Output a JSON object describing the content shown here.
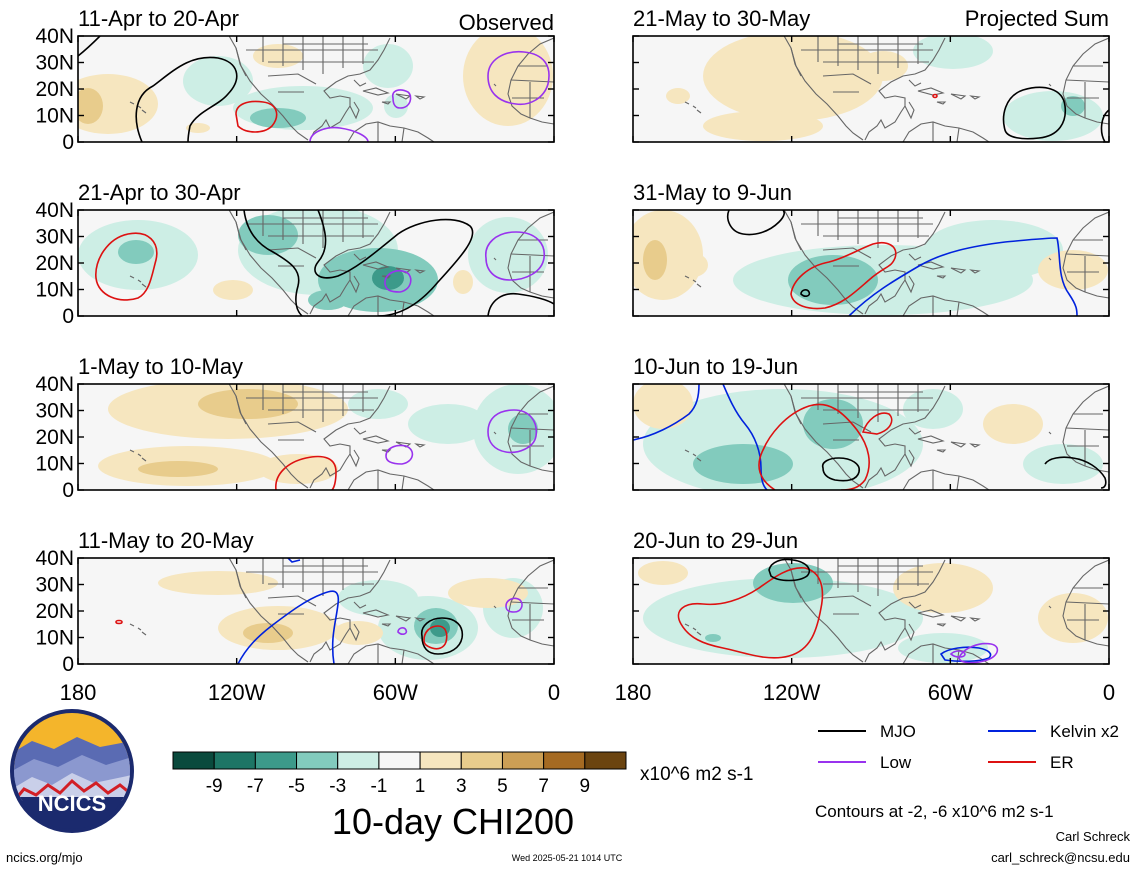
{
  "figure": {
    "main_title": "10-day CHI200",
    "units": "x10^6 m2 s-1",
    "contour_note": "Contours at -2, -6 x10^6 m2 s-1",
    "author": "Carl Schreck",
    "email": "carl_schreck@ncsu.edu",
    "url": "ncics.org/mjo",
    "timestamp": "Wed 2025-05-21 1014 UTC",
    "logo_text": "NCICS",
    "observed_label": "Observed",
    "projected_label": "Projected Sum"
  },
  "colors": {
    "mjo": "#000000",
    "kelvin": "#0022dd",
    "low": "#9933ee",
    "er": "#dd1111",
    "land": "#666666"
  },
  "legend": [
    {
      "key": "mjo",
      "label": "MJO"
    },
    {
      "key": "kelvin",
      "label": "Kelvin x2"
    },
    {
      "key": "low",
      "label": "Low"
    },
    {
      "key": "er",
      "label": "ER"
    }
  ],
  "colorbar": {
    "colors": [
      "#0a4a3d",
      "#1d7565",
      "#3c9a8a",
      "#82cbbd",
      "#cdeee5",
      "#f6f6f6",
      "#f6e6bf",
      "#e8cc8c",
      "#cc9f55",
      "#a56a22",
      "#6b4410"
    ],
    "tick_labels": [
      "-9",
      "-7",
      "-5",
      "-3",
      "-1",
      "1",
      "3",
      "5",
      "7",
      "9"
    ]
  },
  "axes": {
    "lat_ticks": [
      "40N",
      "30N",
      "20N",
      "10N",
      "0"
    ],
    "lon_ticks": [
      "180",
      "120W",
      "60W",
      "0"
    ],
    "lat_range": [
      0,
      40
    ],
    "lon_range": [
      -180,
      0
    ]
  },
  "panels": [
    {
      "title": "11-Apr to 20-Apr"
    },
    {
      "title": "21-Apr to 30-Apr"
    },
    {
      "title": "1-May to 10-May"
    },
    {
      "title": "11-May to 20-May"
    },
    {
      "title": "21-May to 30-May"
    },
    {
      "title": "31-May to 9-Jun"
    },
    {
      "title": "10-Jun to 19-Jun"
    },
    {
      "title": "20-Jun to 29-Jun"
    }
  ]
}
